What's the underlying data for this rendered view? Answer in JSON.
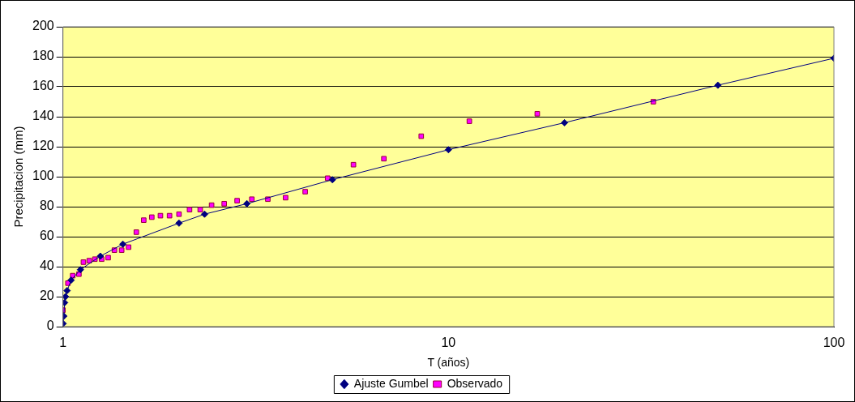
{
  "chart_data": {
    "type": "scatter",
    "xlabel": "T (años)",
    "ylabel": "Precipitacion (mm)",
    "xlim": [
      1,
      100
    ],
    "xticks": [
      1,
      10,
      100
    ],
    "ylim": [
      0,
      200
    ],
    "yticks": [
      0,
      20,
      40,
      60,
      80,
      100,
      120,
      140,
      160,
      180,
      200
    ],
    "log": "x",
    "grid": "y",
    "legend": "bottom",
    "series": [
      {
        "name": "Ajuste Gumbel",
        "type": "line",
        "color": "#000080",
        "marker": "diamond",
        "x": [
          1.001,
          1.005,
          1.01,
          1.015,
          1.025,
          1.05,
          1.11,
          1.25,
          1.43,
          2,
          2.33,
          3,
          5,
          10,
          20,
          50,
          100
        ],
        "values": [
          2,
          7,
          16,
          20,
          24,
          31,
          38,
          47,
          55,
          69,
          75,
          82,
          98,
          118,
          136,
          161,
          179
        ]
      },
      {
        "name": "Observado",
        "color": "#ff00ff",
        "marker": "square",
        "x": [
          34,
          17,
          11.33,
          8.5,
          6.8,
          5.67,
          4.86,
          4.25,
          3.78,
          3.4,
          3.09,
          2.83,
          2.62,
          2.43,
          2.27,
          2.13,
          2,
          1.89,
          1.79,
          1.7,
          1.62,
          1.55,
          1.48,
          1.42,
          1.36,
          1.31,
          1.26,
          1.21,
          1.17,
          1.13,
          1.1,
          1.06,
          1.03,
          1
        ],
        "values": [
          150,
          142,
          137,
          127,
          112,
          108,
          99,
          90,
          86,
          85,
          85,
          84,
          82,
          81,
          78,
          78,
          75,
          74,
          74,
          73,
          71,
          63,
          53,
          51,
          51,
          46,
          45,
          45,
          44,
          43,
          35,
          34,
          29,
          11
        ]
      }
    ]
  }
}
